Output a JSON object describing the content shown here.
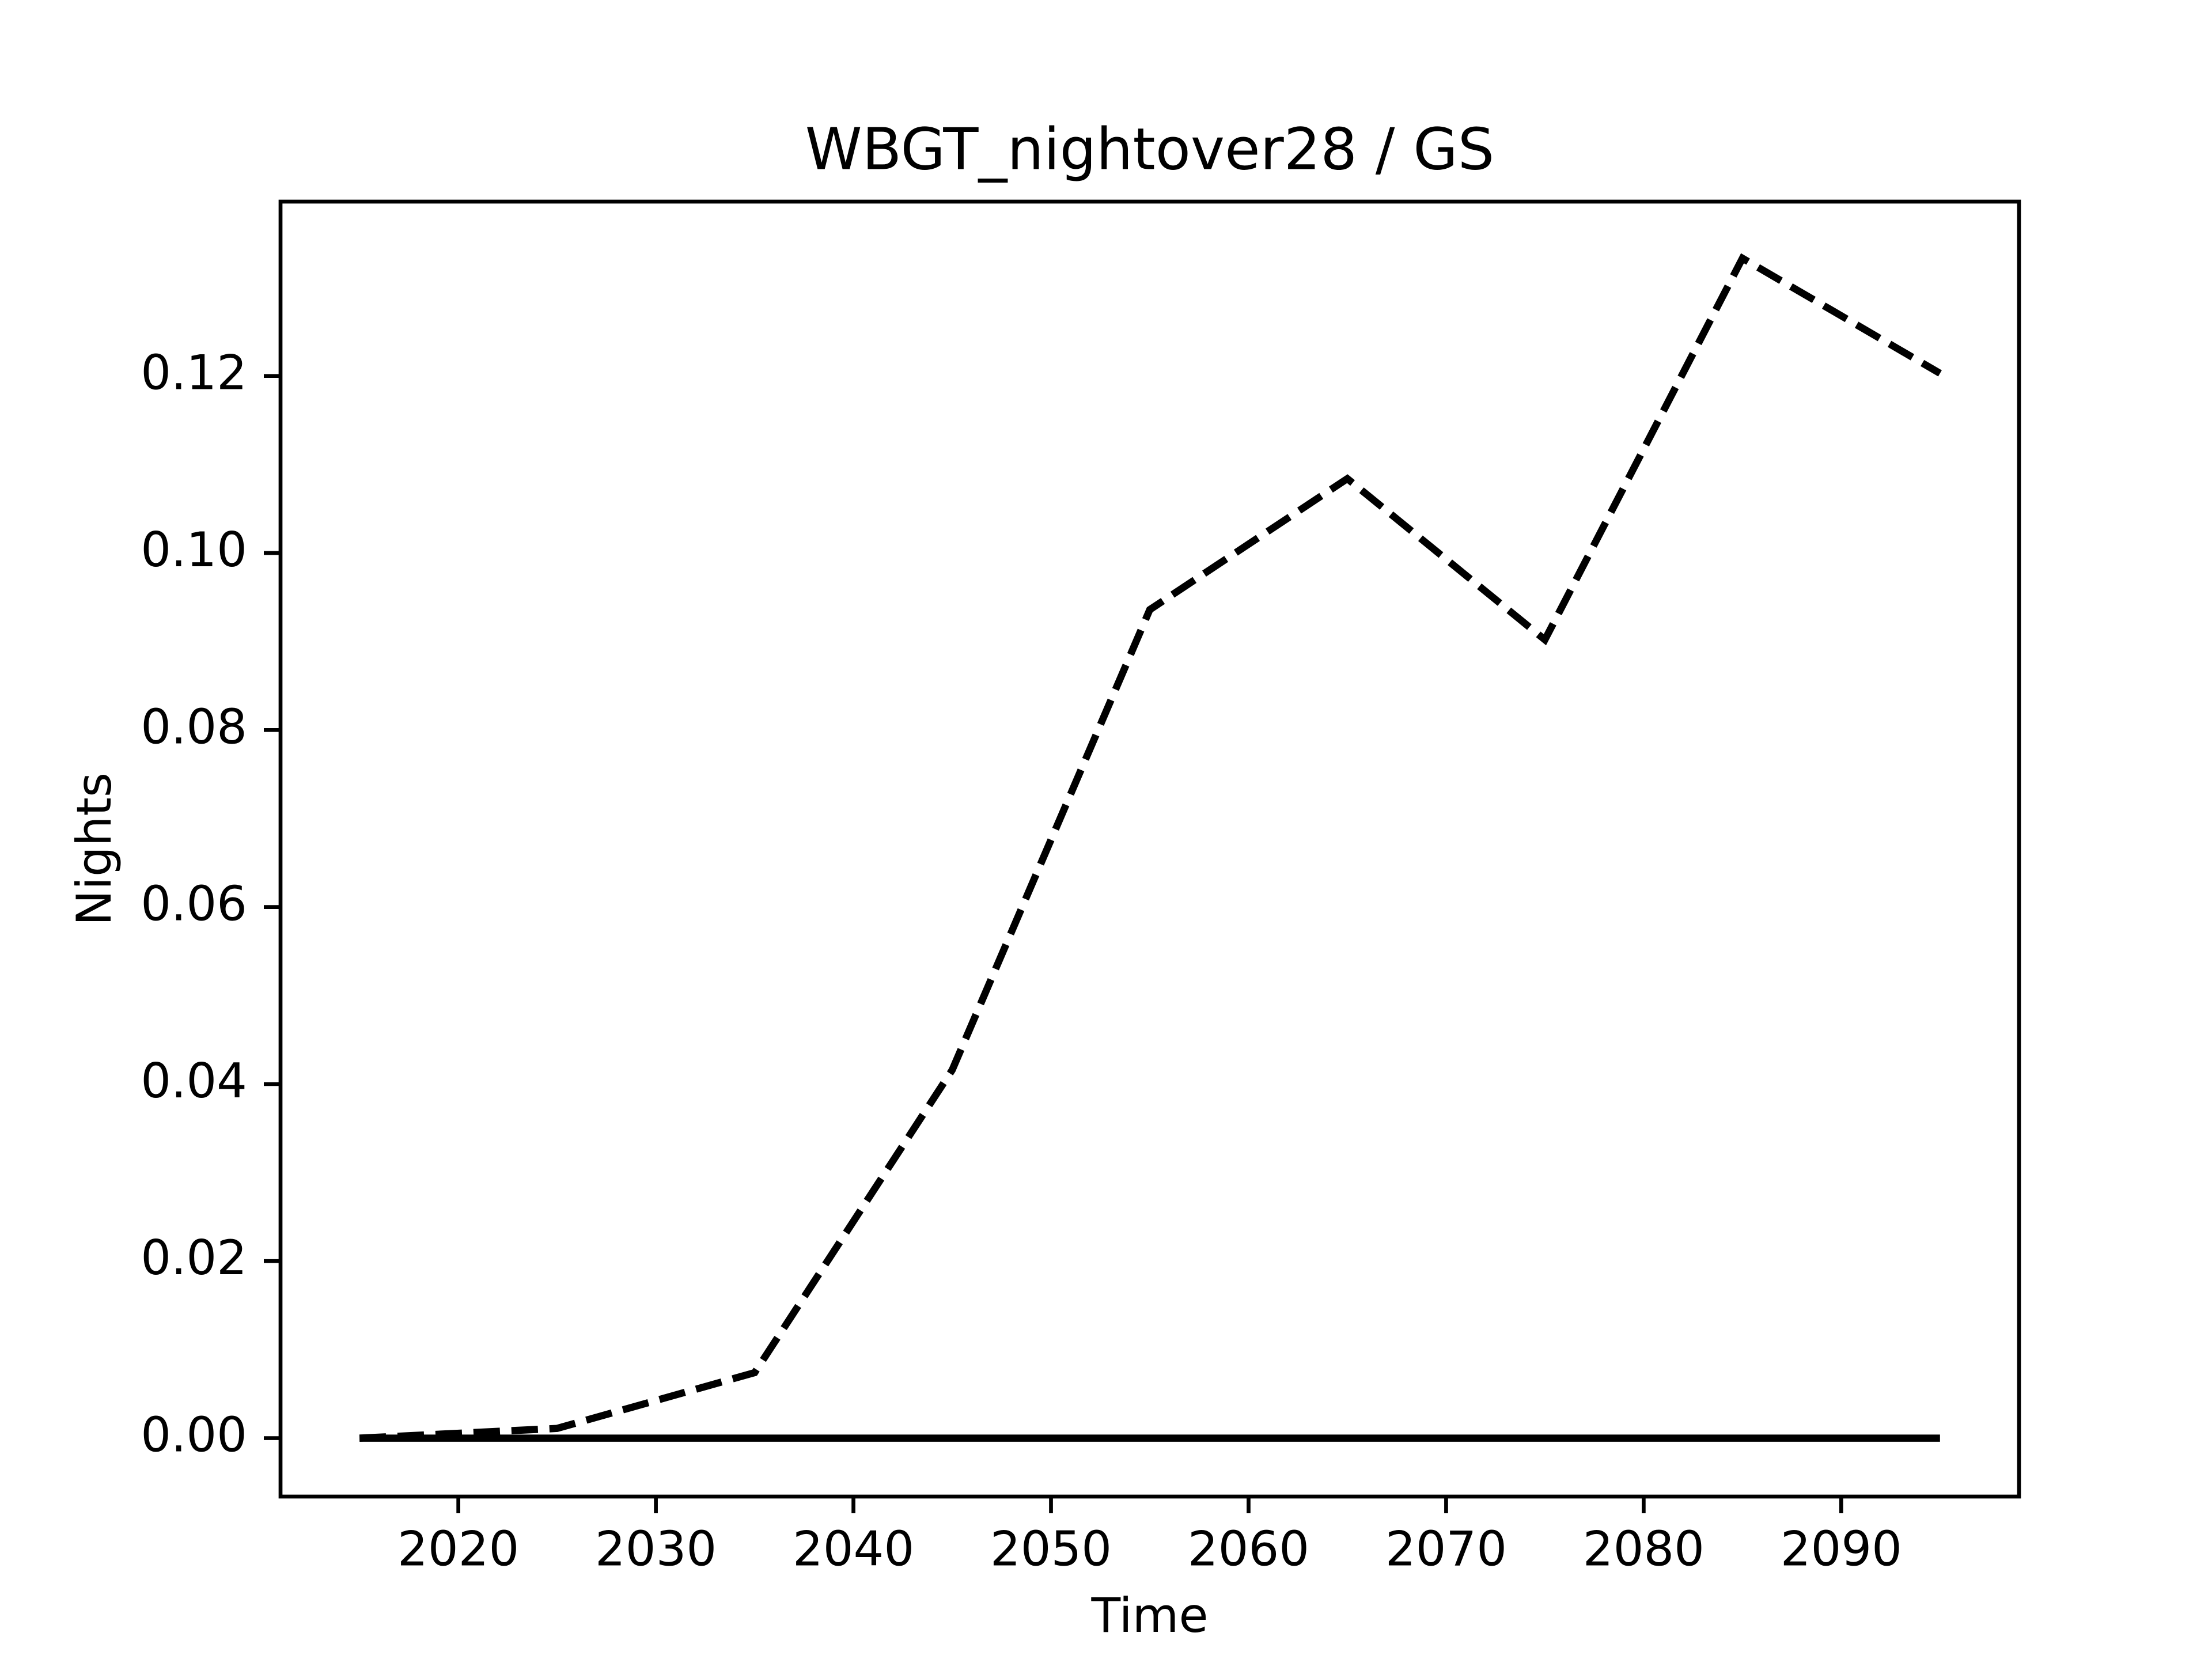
{
  "chart_data": {
    "type": "line",
    "title": "WBGT_nightover28 / GS",
    "x_label": "Time",
    "y_label": "Nights",
    "x": [
      2015,
      2025,
      2035,
      2045,
      2055,
      2065,
      2075,
      2085,
      2095
    ],
    "series": [
      {
        "color": "#000000",
        "linestyle": "dashed",
        "values": [
          0,
          0.0011,
          0.0074,
          0.0416,
          0.0936,
          0.1084,
          0.0902,
          0.1333,
          0.1203
        ]
      },
      {
        "color": "#000000",
        "linestyle": "solid",
        "values": [
          0,
          0,
          0,
          0,
          0,
          0,
          0,
          0,
          0
        ]
      }
    ],
    "xlim": [
      2011,
      2099
    ],
    "xticks": [
      2020,
      2030,
      2040,
      2050,
      2060,
      2070,
      2080,
      2090
    ],
    "ylim": [
      -0.0066,
      0.1397
    ],
    "yticks": [
      {
        "value": 0,
        "label": "0.00"
      },
      {
        "value": 0.02,
        "label": "0.02"
      },
      {
        "value": 0.04,
        "label": "0.04"
      },
      {
        "value": 0.06,
        "label": "0.06"
      },
      {
        "value": 0.08,
        "label": "0.08"
      },
      {
        "value": 0.1,
        "label": "0.10"
      },
      {
        "value": 0.12,
        "label": "0.12"
      }
    ],
    "grid": false
  }
}
